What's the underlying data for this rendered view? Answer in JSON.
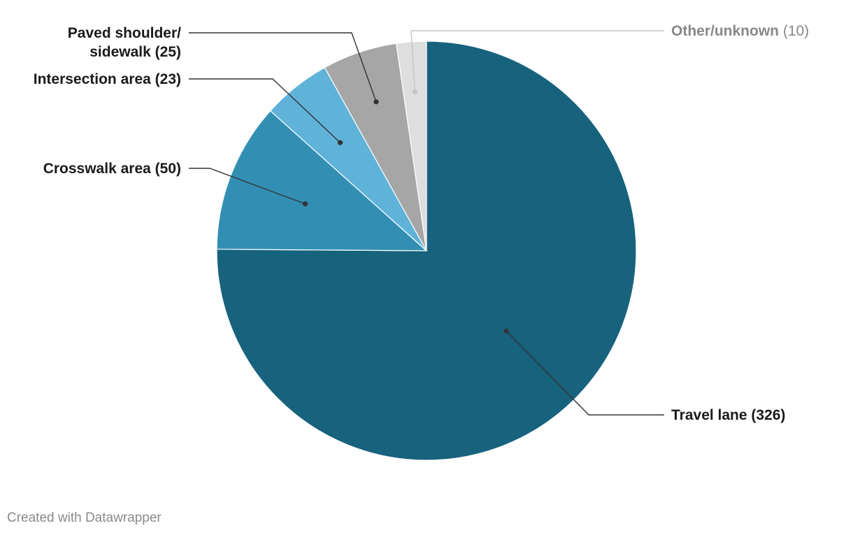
{
  "chart_data": {
    "type": "pie",
    "slices": [
      {
        "label": "Travel lane",
        "value": 326,
        "color": "#17627d"
      },
      {
        "label": "Crosswalk area",
        "value": 50,
        "color": "#328fb3"
      },
      {
        "label": "Intersection area",
        "value": 23,
        "color": "#5fb3d9"
      },
      {
        "label": "Paved shoulder/ sidewalk",
        "value": 25,
        "color": "#a6a6a6"
      },
      {
        "label": "Other/unknown",
        "value": 10,
        "color": "#dedede"
      }
    ],
    "label_format": "{label} ({value})"
  },
  "footer": {
    "credit": "Created with Datawrapper"
  }
}
